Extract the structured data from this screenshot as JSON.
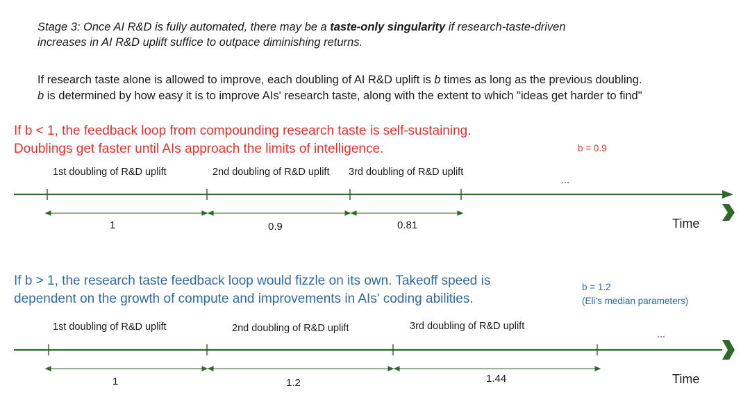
{
  "stage": {
    "prefix": "Stage 3: Once AI R&D is fully automated, there may be a ",
    "bold": "taste-only singularity",
    "suffix": " if research-taste-driven",
    "line2": "increases in AI R&D uplift suffice to outpace diminishing returns."
  },
  "explanation": {
    "line1_prefix": "If research taste alone is allowed to improve, each doubling of AI R&D uplift is ",
    "line1_var": "b",
    "line1_suffix": " times as long as the previous doubling.",
    "line2_var": "b",
    "line2_suffix": " is determined by how easy it is to improve AIs' research taste, along with the extent to which \"ideas get harder to find\""
  },
  "case_low": {
    "heading_line1": "If b < 1, the feedback loop from compounding research taste is self-sustaining.",
    "heading_line2": "Doublings get faster until AIs approach the limits of intelligence.",
    "b_label": "b = 0.9",
    "doubling_labels": [
      "1st doubling of R&D uplift",
      "2nd doubling of R&D uplift",
      "3rd doubling of R&D uplift"
    ],
    "durations": [
      "1",
      "0.9",
      "0.81"
    ],
    "ellipsis": "...",
    "time_label": "Time"
  },
  "case_high": {
    "heading_line1": "If b > 1, the research taste feedback loop would fizzle on its own. Takeoff speed is",
    "heading_line2": "dependent on the growth of compute and improvements in AIs' coding abilities.",
    "b_label": "b = 1.2",
    "b_note": "(Eli's median parameters)",
    "doubling_labels": [
      "1st doubling of R&D uplift",
      "2nd doubling of R&D uplift",
      "3rd doubling of R&D uplift"
    ],
    "durations": [
      "1",
      "1.2",
      "1.44"
    ],
    "ellipsis": "...",
    "time_label": "Time"
  },
  "colors": {
    "timeline": "#2d6a2a",
    "low_case": "#e8302a",
    "high_case": "#2f6aa3"
  }
}
